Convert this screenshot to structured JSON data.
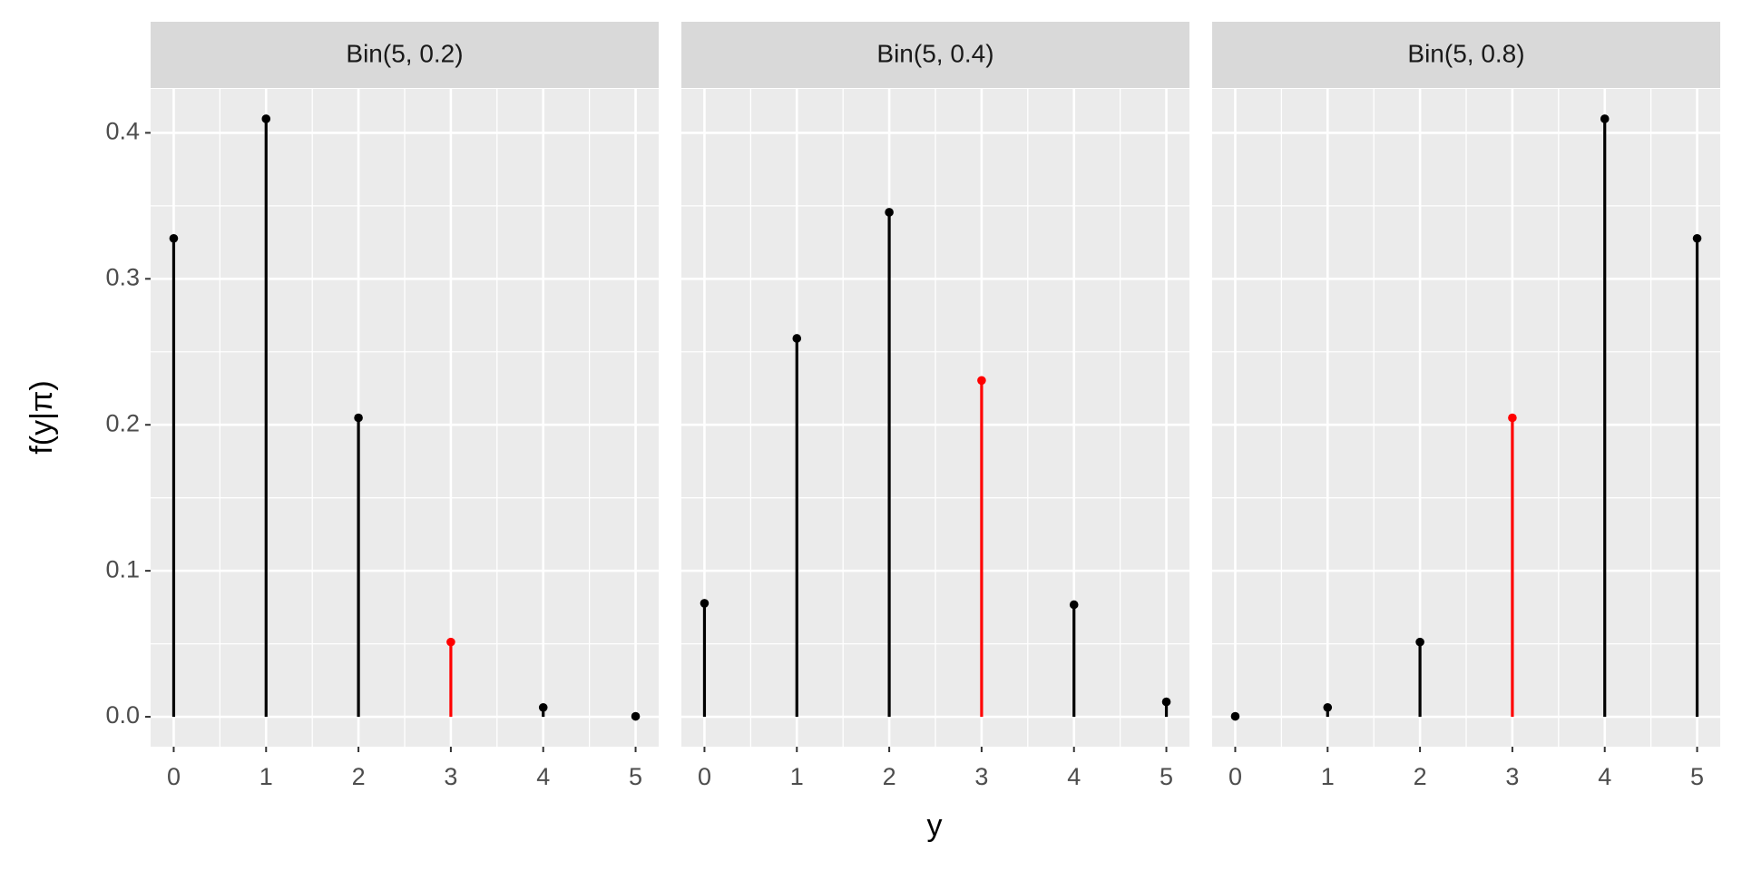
{
  "xlabel": "y",
  "ylabel": "f(y|π)",
  "ylim": [
    -0.02048,
    0.43008
  ],
  "yticks": [
    {
      "value": 0,
      "label": "0.0"
    },
    0.1,
    0.2,
    0.3,
    0.4
  ],
  "grid": true,
  "minor_grid": true,
  "chart_data": [
    {
      "type": "lollipop",
      "title": "Bin(5, 0.2)",
      "x": [
        0,
        1,
        2,
        3,
        4,
        5
      ],
      "values": [
        0.32768,
        0.4096,
        0.2048,
        0.0512,
        0.0064,
        0.00032
      ],
      "colors": [
        "#000000",
        "#000000",
        "#000000",
        "#ff0000",
        "#000000",
        "#000000"
      ],
      "xlim": [
        -0.25,
        5.25
      ],
      "xticks": [
        0,
        1,
        2,
        3,
        4,
        5
      ]
    },
    {
      "type": "lollipop",
      "title": "Bin(5, 0.4)",
      "x": [
        0,
        1,
        2,
        3,
        4,
        5
      ],
      "values": [
        0.07776,
        0.2592,
        0.3456,
        0.2304,
        0.0768,
        0.01024
      ],
      "colors": [
        "#000000",
        "#000000",
        "#000000",
        "#ff0000",
        "#000000",
        "#000000"
      ],
      "xlim": [
        -0.25,
        5.25
      ],
      "xticks": [
        0,
        1,
        2,
        3,
        4,
        5
      ]
    },
    {
      "type": "lollipop",
      "title": "Bin(5, 0.8)",
      "x": [
        0,
        1,
        2,
        3,
        4,
        5
      ],
      "values": [
        0.00032,
        0.0064,
        0.0512,
        0.2048,
        0.4096,
        0.32768
      ],
      "colors": [
        "#000000",
        "#000000",
        "#000000",
        "#ff0000",
        "#000000",
        "#000000"
      ],
      "xlim": [
        -0.25,
        5.25
      ],
      "xticks": [
        0,
        1,
        2,
        3,
        4,
        5
      ]
    }
  ]
}
